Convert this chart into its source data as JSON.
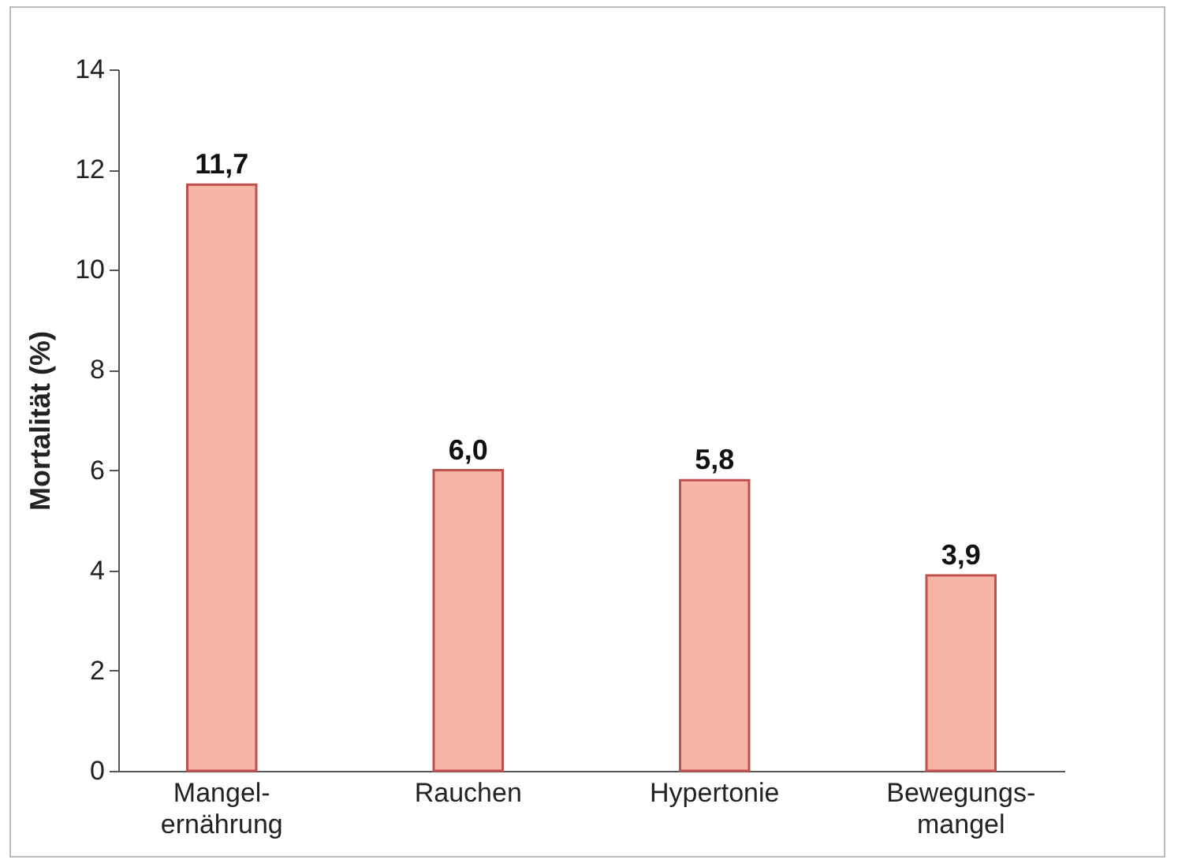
{
  "chart_data": {
    "type": "bar",
    "ylabel": "Mortalität (%)",
    "categories": [
      "Mangel-\nernährung",
      "Rauchen",
      "Hypertonie",
      "Bewegungs-\nmangel"
    ],
    "values": [
      11.7,
      6.0,
      5.8,
      3.9
    ],
    "value_labels": [
      "11,7",
      "6,0",
      "5,8",
      "3,9"
    ],
    "color": "#f6b5a5",
    "ylim": [
      0,
      14
    ],
    "yticks": [
      0,
      2,
      4,
      6,
      8,
      10,
      12,
      14
    ],
    "grid": false
  }
}
